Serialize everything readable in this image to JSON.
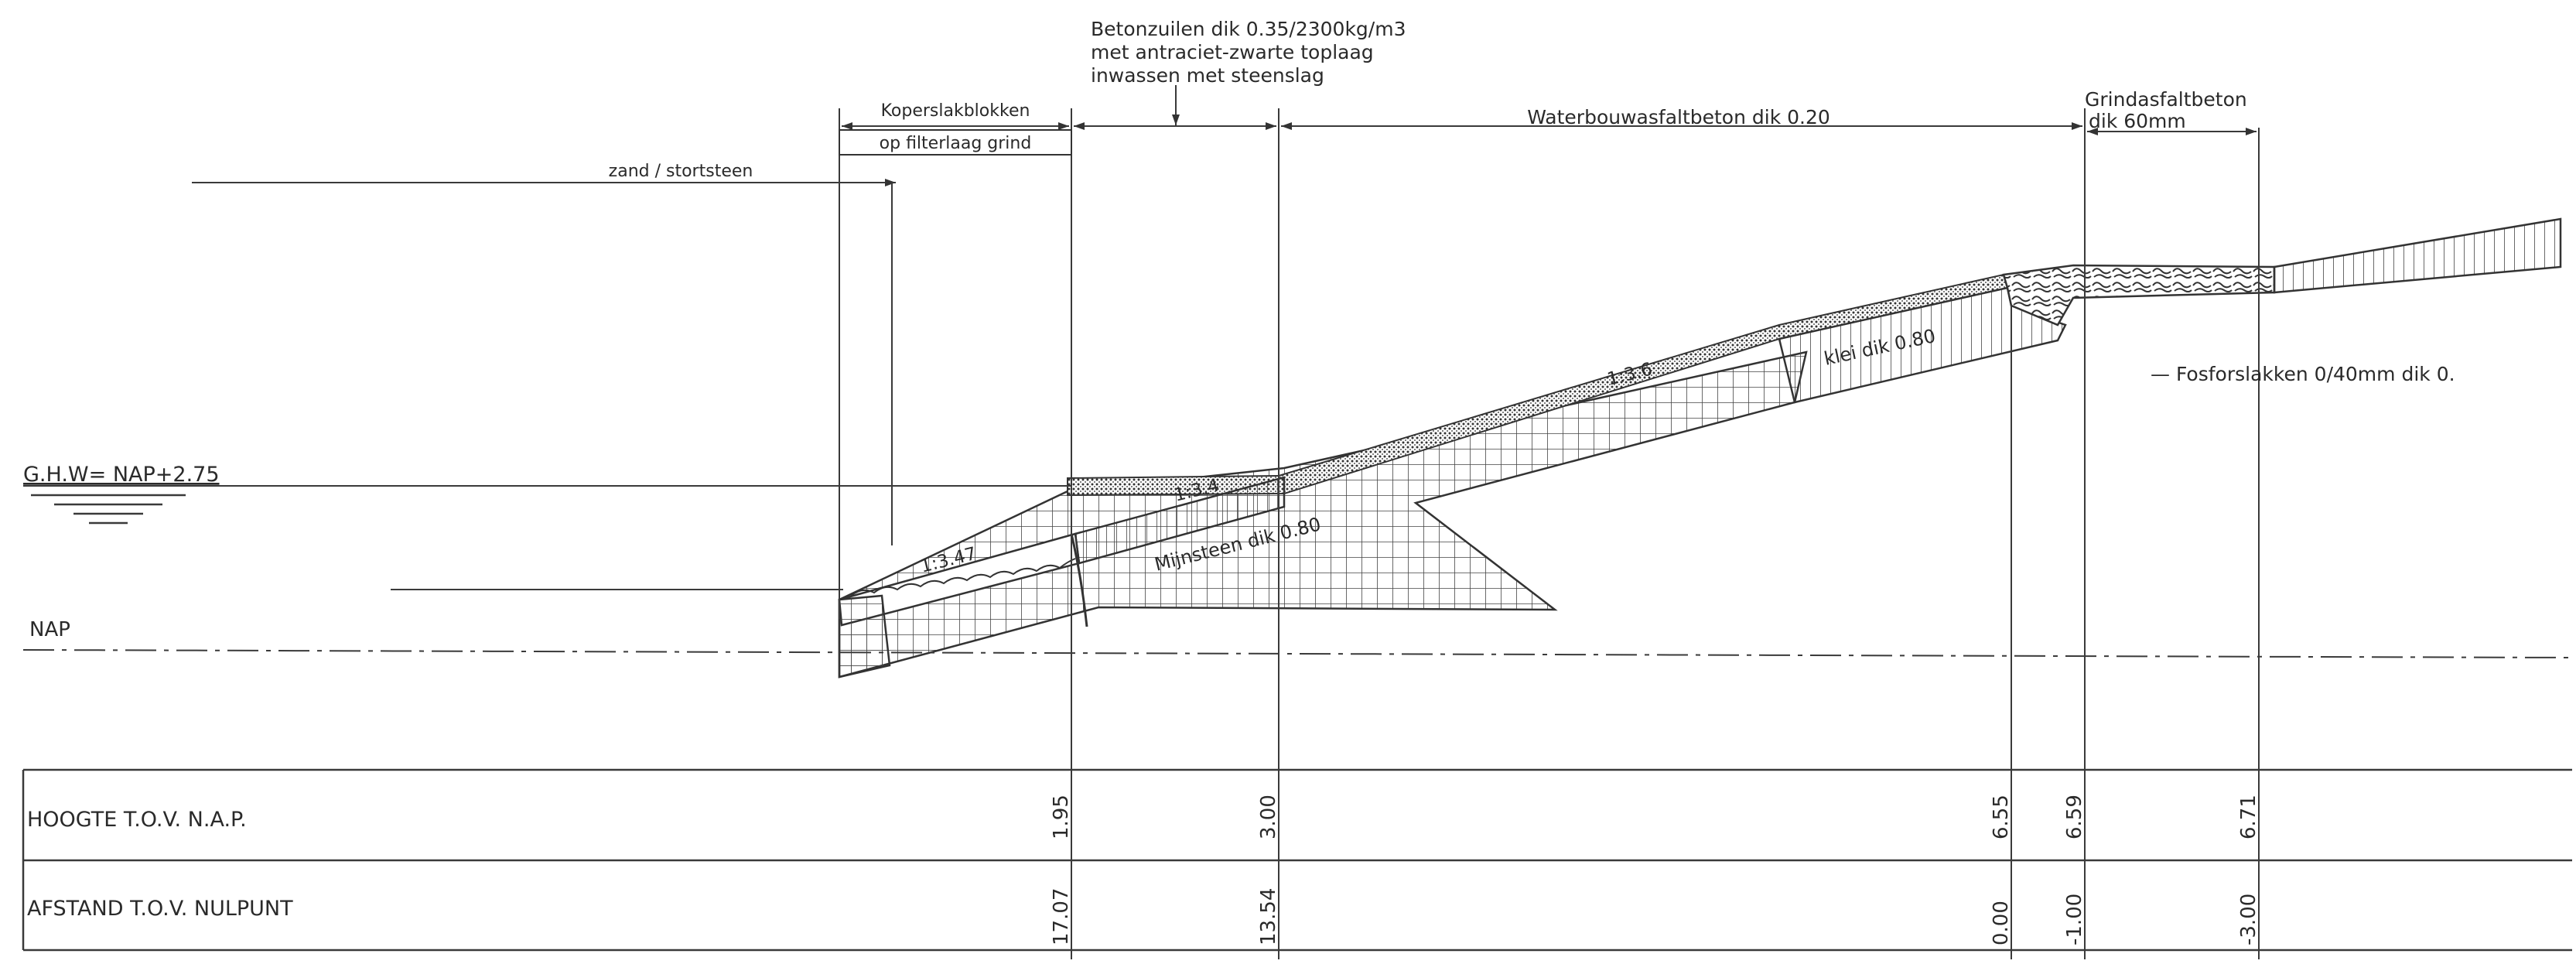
{
  "annotations": {
    "betonzuilen": [
      "Betonzuilen dik 0.35/2300kg/m3",
      "met antraciet-zwarte toplaag",
      "inwassen met steenslag"
    ],
    "kopersla_line1": "Koperslakblokken",
    "kopersla_line2": "op filterlaag grind",
    "zand": "zand / stortsteen",
    "waterbouw": "Waterbouwasfaltbeton dik 0.20",
    "grindasfalt_line1": "Grindasfaltbeton",
    "grindasfalt_line2": "dik 60mm",
    "fosfor": "— Fosforslakken 0/40mm dik 0.",
    "klei": "klei dik 0.80",
    "mijnsteen": "Mijnsteen dik 0.80",
    "ghw": "G.H.W= NAP+2.75",
    "nap": "NAP"
  },
  "slopes": [
    "1:3.47",
    "1:3.4",
    "1:3.6"
  ],
  "table": {
    "row1_label": "HOOGTE T.O.V. N.A.P.",
    "row2_label": "AFSTAND T.O.V. NULPUNT",
    "hoogte": [
      "1.95",
      "3.00",
      "6.55",
      "6.59",
      "6.71"
    ],
    "afstand": [
      "17.07",
      "13.54",
      "0.00",
      "-1.00",
      "-3.00"
    ]
  },
  "colors": {
    "ink": "#2a2a2a",
    "paper": "#ffffff"
  }
}
